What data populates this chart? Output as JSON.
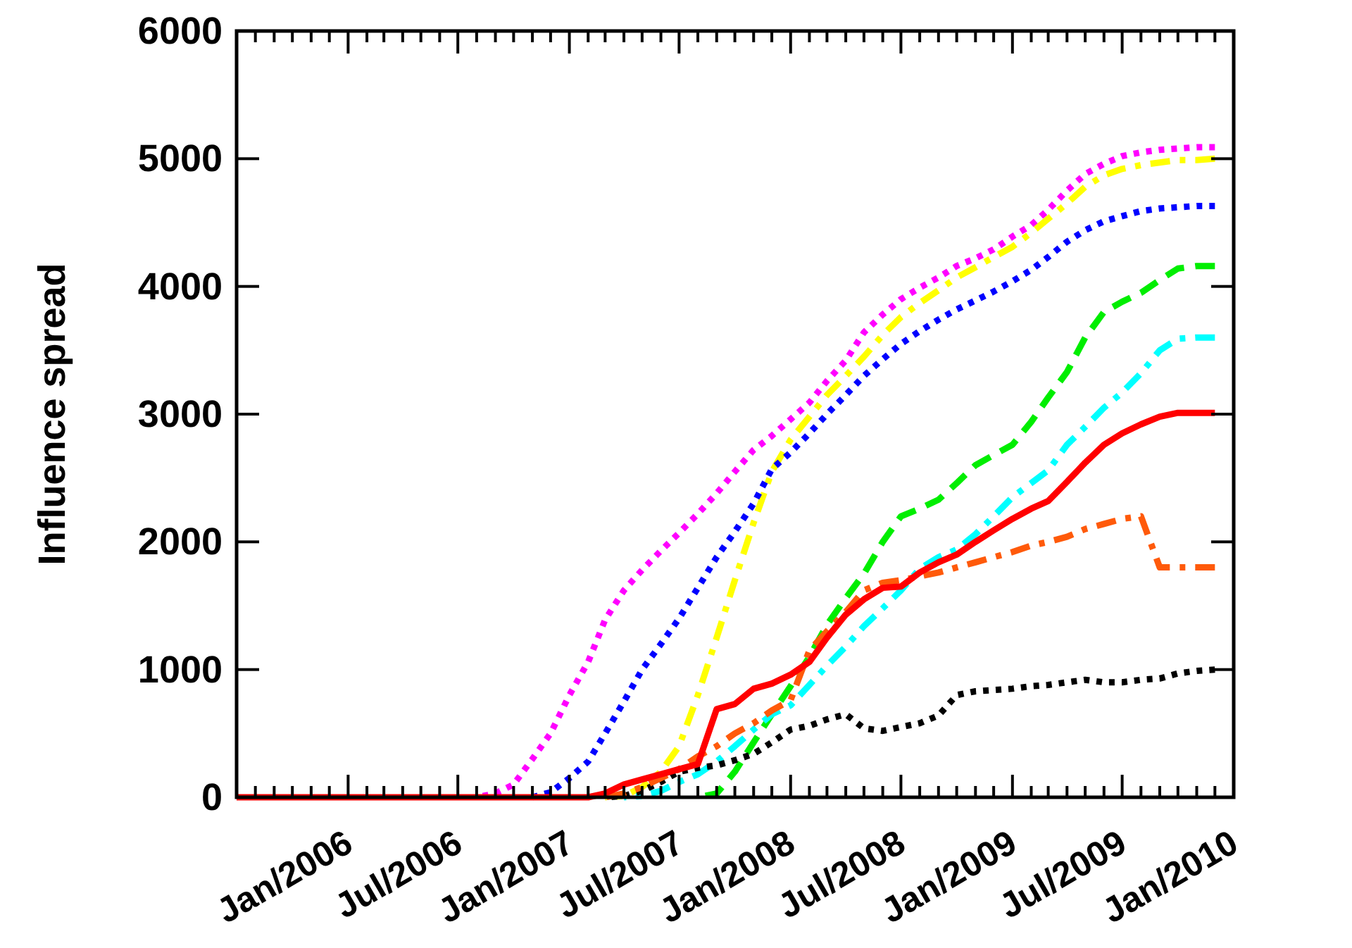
{
  "chart_data": {
    "type": "line",
    "ylabel": "Influence spread",
    "x": [
      "2005-07",
      "2005-08",
      "2005-09",
      "2005-10",
      "2005-11",
      "2005-12",
      "2006-01",
      "2006-02",
      "2006-03",
      "2006-04",
      "2006-05",
      "2006-06",
      "2006-07",
      "2006-08",
      "2006-09",
      "2006-10",
      "2006-11",
      "2006-12",
      "2007-01",
      "2007-02",
      "2007-03",
      "2007-04",
      "2007-05",
      "2007-06",
      "2007-07",
      "2007-08",
      "2007-09",
      "2007-10",
      "2007-11",
      "2007-12",
      "2008-01",
      "2008-02",
      "2008-03",
      "2008-04",
      "2008-05",
      "2008-06",
      "2008-07",
      "2008-08",
      "2008-09",
      "2008-10",
      "2008-11",
      "2008-12",
      "2009-01",
      "2009-02",
      "2009-03",
      "2009-04",
      "2009-05",
      "2009-06",
      "2009-07",
      "2009-08",
      "2009-09",
      "2009-10",
      "2009-11",
      "2009-12"
    ],
    "xlim": [
      "2005-07",
      "2010-01"
    ],
    "xticks": [
      {
        "value": "2005-08",
        "label": null
      },
      {
        "value": "2005-09",
        "label": null
      },
      {
        "value": "2005-10",
        "label": null
      },
      {
        "value": "2005-11",
        "label": null
      },
      {
        "value": "2005-12",
        "label": null
      },
      {
        "value": "2006-01",
        "label": "Jan/2006"
      },
      {
        "value": "2006-02",
        "label": null
      },
      {
        "value": "2006-03",
        "label": null
      },
      {
        "value": "2006-04",
        "label": null
      },
      {
        "value": "2006-05",
        "label": null
      },
      {
        "value": "2006-06",
        "label": null
      },
      {
        "value": "2006-07",
        "label": "Jul/2006"
      },
      {
        "value": "2006-08",
        "label": null
      },
      {
        "value": "2006-09",
        "label": null
      },
      {
        "value": "2006-10",
        "label": null
      },
      {
        "value": "2006-11",
        "label": null
      },
      {
        "value": "2006-12",
        "label": null
      },
      {
        "value": "2007-01",
        "label": "Jan/2007"
      },
      {
        "value": "2007-02",
        "label": null
      },
      {
        "value": "2007-03",
        "label": null
      },
      {
        "value": "2007-04",
        "label": null
      },
      {
        "value": "2007-05",
        "label": null
      },
      {
        "value": "2007-06",
        "label": null
      },
      {
        "value": "2007-07",
        "label": "Jul/2007"
      },
      {
        "value": "2007-08",
        "label": null
      },
      {
        "value": "2007-09",
        "label": null
      },
      {
        "value": "2007-10",
        "label": null
      },
      {
        "value": "2007-11",
        "label": null
      },
      {
        "value": "2007-12",
        "label": null
      },
      {
        "value": "2008-01",
        "label": "Jan/2008"
      },
      {
        "value": "2008-02",
        "label": null
      },
      {
        "value": "2008-03",
        "label": null
      },
      {
        "value": "2008-04",
        "label": null
      },
      {
        "value": "2008-05",
        "label": null
      },
      {
        "value": "2008-06",
        "label": null
      },
      {
        "value": "2008-07",
        "label": "Jul/2008"
      },
      {
        "value": "2008-08",
        "label": null
      },
      {
        "value": "2008-09",
        "label": null
      },
      {
        "value": "2008-10",
        "label": null
      },
      {
        "value": "2008-11",
        "label": null
      },
      {
        "value": "2008-12",
        "label": null
      },
      {
        "value": "2009-01",
        "label": "Jan/2009"
      },
      {
        "value": "2009-02",
        "label": null
      },
      {
        "value": "2009-03",
        "label": null
      },
      {
        "value": "2009-04",
        "label": null
      },
      {
        "value": "2009-05",
        "label": null
      },
      {
        "value": "2009-06",
        "label": null
      },
      {
        "value": "2009-07",
        "label": "Jul/2009"
      },
      {
        "value": "2009-08",
        "label": null
      },
      {
        "value": "2009-09",
        "label": null
      },
      {
        "value": "2009-10",
        "label": null
      },
      {
        "value": "2009-11",
        "label": null
      },
      {
        "value": "2009-12",
        "label": null
      },
      {
        "value": "2010-01",
        "label": "Jan/2010"
      }
    ],
    "ylim": [
      0,
      6000
    ],
    "yticks": [
      0,
      1000,
      2000,
      3000,
      4000,
      5000,
      6000
    ],
    "grid": false,
    "marker": "none",
    "series": [
      {
        "color": "#ff00ff",
        "line_style": "dotted",
        "values": [
          null,
          null,
          null,
          null,
          null,
          null,
          null,
          null,
          null,
          null,
          null,
          null,
          null,
          0,
          30,
          100,
          300,
          500,
          800,
          1060,
          1390,
          1620,
          1780,
          1930,
          2070,
          2220,
          2380,
          2550,
          2720,
          2830,
          2960,
          3090,
          3260,
          3420,
          3640,
          3780,
          3900,
          3990,
          4070,
          4160,
          4220,
          4290,
          4390,
          4480,
          4600,
          4750,
          4880,
          4960,
          5020,
          5050,
          5070,
          5080,
          5090,
          5090
        ]
      },
      {
        "color": "#ffff00",
        "line_style": "dashdot",
        "values": [
          null,
          null,
          null,
          null,
          null,
          null,
          null,
          null,
          null,
          null,
          null,
          null,
          null,
          null,
          null,
          null,
          null,
          null,
          null,
          null,
          0,
          10,
          80,
          200,
          400,
          800,
          1250,
          1700,
          2150,
          2550,
          2800,
          2980,
          3150,
          3300,
          3450,
          3620,
          3760,
          3870,
          3970,
          4070,
          4150,
          4230,
          4310,
          4420,
          4530,
          4650,
          4780,
          4870,
          4920,
          4950,
          4970,
          4990,
          4990,
          5000
        ]
      },
      {
        "color": "#0000ff",
        "line_style": "dotted",
        "values": [
          null,
          null,
          null,
          null,
          null,
          null,
          null,
          null,
          null,
          null,
          null,
          null,
          null,
          null,
          null,
          null,
          0,
          40,
          150,
          280,
          500,
          750,
          1000,
          1200,
          1400,
          1640,
          1880,
          2080,
          2300,
          2570,
          2700,
          2850,
          3000,
          3150,
          3300,
          3430,
          3550,
          3650,
          3740,
          3820,
          3890,
          3960,
          4040,
          4130,
          4230,
          4350,
          4440,
          4510,
          4550,
          4590,
          4610,
          4620,
          4630,
          4630
        ]
      },
      {
        "color": "#00ee00",
        "line_style": "dashed",
        "values": [
          null,
          null,
          null,
          null,
          null,
          null,
          null,
          null,
          null,
          null,
          null,
          null,
          null,
          null,
          null,
          null,
          null,
          null,
          null,
          null,
          null,
          null,
          null,
          null,
          null,
          0,
          30,
          200,
          430,
          650,
          870,
          1100,
          1350,
          1560,
          1750,
          2000,
          2200,
          2260,
          2330,
          2460,
          2600,
          2680,
          2760,
          2940,
          3130,
          3330,
          3600,
          3800,
          3880,
          3950,
          4050,
          4140,
          4160,
          4160
        ]
      },
      {
        "color": "#00ffff",
        "line_style": "dashdot",
        "values": [
          null,
          null,
          null,
          null,
          null,
          null,
          null,
          null,
          null,
          null,
          null,
          null,
          null,
          null,
          null,
          null,
          null,
          null,
          null,
          null,
          null,
          0,
          10,
          50,
          120,
          180,
          280,
          400,
          530,
          650,
          720,
          880,
          1030,
          1180,
          1340,
          1480,
          1620,
          1790,
          1880,
          1940,
          2060,
          2200,
          2350,
          2460,
          2560,
          2760,
          2900,
          3050,
          3170,
          3320,
          3500,
          3590,
          3600,
          3600
        ]
      },
      {
        "color": "#000000",
        "line_style": "dotted",
        "values": [
          null,
          null,
          null,
          null,
          null,
          null,
          null,
          null,
          null,
          null,
          null,
          null,
          null,
          null,
          null,
          null,
          null,
          null,
          null,
          null,
          0,
          10,
          50,
          120,
          200,
          230,
          250,
          290,
          340,
          430,
          530,
          560,
          610,
          650,
          540,
          520,
          550,
          580,
          640,
          800,
          830,
          840,
          850,
          870,
          880,
          900,
          920,
          900,
          900,
          920,
          930,
          970,
          990,
          1000
        ]
      },
      {
        "color": "#ff5a0a",
        "line_style": "dashdot",
        "values": [
          null,
          null,
          null,
          null,
          null,
          null,
          null,
          null,
          null,
          null,
          null,
          null,
          null,
          null,
          null,
          null,
          null,
          null,
          null,
          null,
          0,
          30,
          80,
          150,
          220,
          320,
          400,
          500,
          580,
          680,
          760,
          1150,
          1300,
          1450,
          1620,
          1680,
          1700,
          1730,
          1760,
          1800,
          1840,
          1880,
          1920,
          1970,
          2000,
          2040,
          2100,
          2140,
          2180,
          2200,
          1800,
          1800,
          1800,
          1800
        ]
      },
      {
        "color": "#ff0000",
        "line_style": "solid",
        "values": [
          0,
          0,
          0,
          0,
          0,
          0,
          0,
          0,
          0,
          0,
          0,
          0,
          0,
          0,
          0,
          0,
          0,
          0,
          0,
          0,
          30,
          100,
          140,
          180,
          220,
          260,
          690,
          730,
          850,
          890,
          960,
          1060,
          1250,
          1430,
          1550,
          1640,
          1650,
          1760,
          1840,
          1900,
          2000,
          2090,
          2180,
          2260,
          2320,
          2470,
          2620,
          2760,
          2850,
          2920,
          2980,
          3010,
          3010,
          3010
        ]
      }
    ]
  }
}
